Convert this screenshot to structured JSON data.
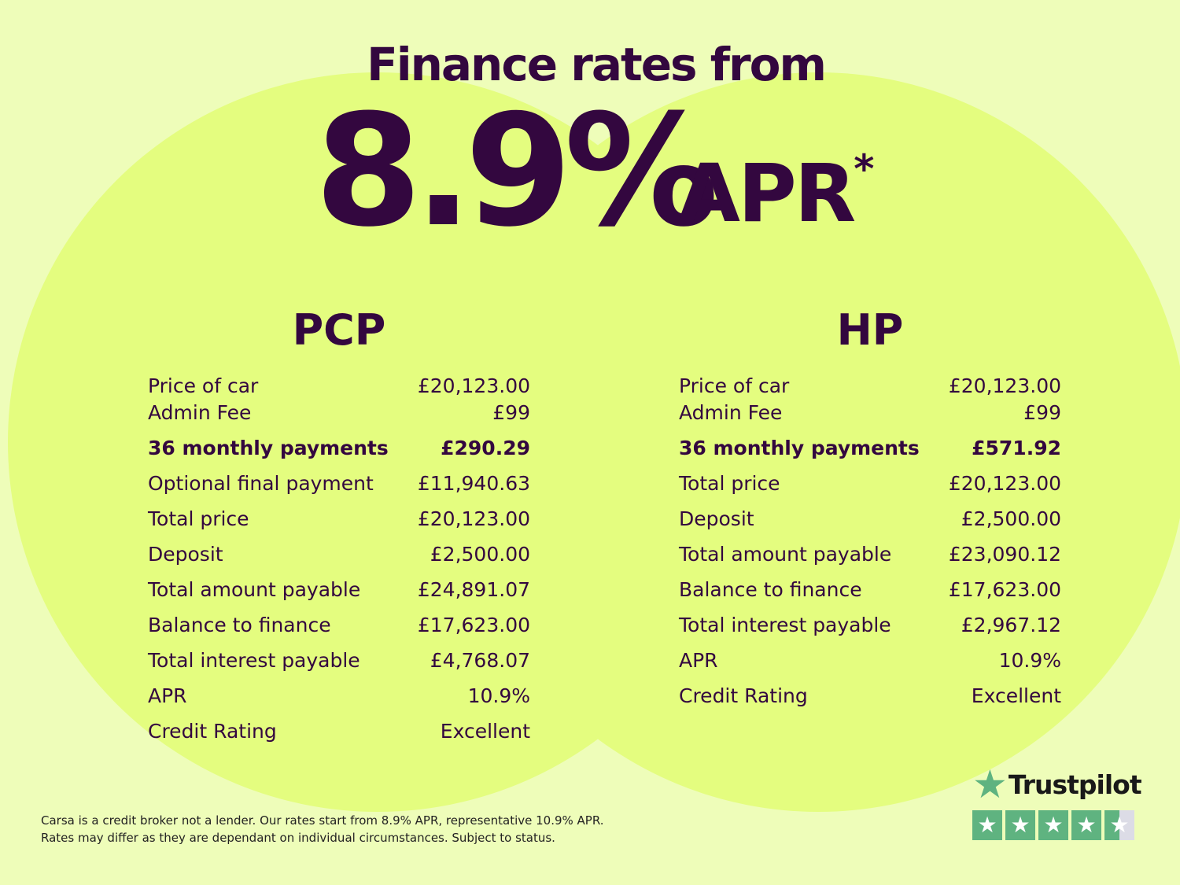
{
  "colors": {
    "background": "#eefdb9",
    "circle": "#e4fd7f",
    "text": "#33073f",
    "trustpilot_green": "#5fb380"
  },
  "header": {
    "title": "Finance rates from",
    "rate": "8.9%",
    "apr": "APR",
    "asterisk": "*"
  },
  "pcp": {
    "heading": "PCP",
    "rows": [
      {
        "label": "Price of car",
        "value": "£20,123.00"
      },
      {
        "label": "Admin Fee",
        "value": "£99"
      },
      {
        "label": "36 monthly payments",
        "value": "£290.29",
        "bold": true
      },
      {
        "label": "Optional final payment",
        "value": "£11,940.63"
      },
      {
        "label": "Total price",
        "value": "£20,123.00"
      },
      {
        "label": "Deposit",
        "value": "£2,500.00"
      },
      {
        "label": "Total amount payable",
        "value": "£24,891.07"
      },
      {
        "label": "Balance to finance",
        "value": "£17,623.00"
      },
      {
        "label": "Total interest payable",
        "value": "£4,768.07"
      },
      {
        "label": "APR",
        "value": "10.9%"
      },
      {
        "label": "Credit Rating",
        "value": "Excellent"
      }
    ]
  },
  "hp": {
    "heading": "HP",
    "rows": [
      {
        "label": "Price of car",
        "value": "£20,123.00"
      },
      {
        "label": "Admin Fee",
        "value": "£99"
      },
      {
        "label": "36 monthly payments",
        "value": "£571.92",
        "bold": true
      },
      {
        "label": "Total price",
        "value": "£20,123.00"
      },
      {
        "label": "Deposit",
        "value": "£2,500.00"
      },
      {
        "label": "Total amount payable",
        "value": "£23,090.12"
      },
      {
        "label": "Balance to finance",
        "value": "£17,623.00"
      },
      {
        "label": "Total interest payable",
        "value": "£2,967.12"
      },
      {
        "label": "APR",
        "value": "10.9%"
      },
      {
        "label": "Credit Rating",
        "value": "Excellent"
      }
    ]
  },
  "disclaimer": {
    "line1": "Carsa is a credit broker not a lender. Our rates start from 8.9% APR, representative 10.9% APR.",
    "line2": "Rates may differ as they are dependant on individual circumstances. Subject to status."
  },
  "trustpilot": {
    "name": "Trustpilot",
    "rating_stars": 4.5,
    "max_stars": 5,
    "logo_icon": "star-icon"
  }
}
